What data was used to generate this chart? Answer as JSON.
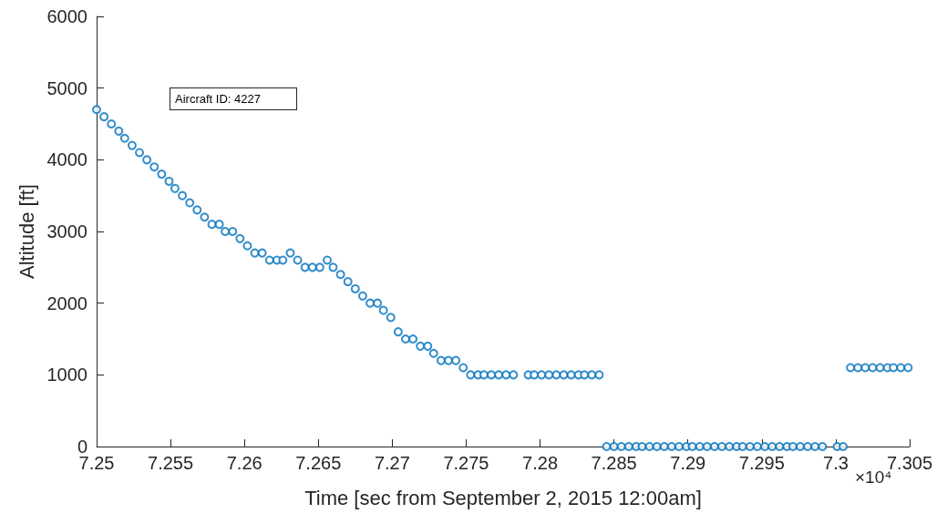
{
  "chart_data": {
    "type": "scatter",
    "xlabel": "Time [sec from September 2, 2015 12:00am]",
    "ylabel": "Altitude [ft]",
    "annotations": [
      "Aircraft ID: 4227",
      "×10⁴"
    ],
    "xlim": [
      7.25,
      7.305
    ],
    "xticks": [
      7.25,
      7.255,
      7.26,
      7.265,
      7.27,
      7.275,
      7.28,
      7.285,
      7.29,
      7.295,
      7.3,
      7.305
    ],
    "ylim": [
      0,
      6000
    ],
    "yticks": [
      0,
      1000,
      2000,
      3000,
      4000,
      5000,
      6000
    ],
    "grid": false,
    "marker": "circle",
    "series": [
      {
        "color": "#0072bd",
        "x": [
          7.25,
          7.2505,
          7.251,
          7.2515,
          7.2519,
          7.2524,
          7.2529,
          7.2534,
          7.2539,
          7.2544,
          7.2549,
          7.2553,
          7.2558,
          7.2563,
          7.2568,
          7.2573,
          7.2578,
          7.2583,
          7.2587,
          7.2592,
          7.2597,
          7.2602,
          7.2607,
          7.2612,
          7.2617,
          7.2622,
          7.2626,
          7.2631,
          7.2636,
          7.2641,
          7.2646,
          7.2651,
          7.2656,
          7.266,
          7.2665,
          7.267,
          7.2675,
          7.268,
          7.2685,
          7.269,
          7.2694,
          7.2699,
          7.2704,
          7.2709,
          7.2714,
          7.2719,
          7.2724,
          7.2728,
          7.2733,
          7.2738,
          7.2743,
          7.2748,
          7.2753,
          7.2758,
          7.2762,
          7.2767,
          7.2772,
          7.2777,
          7.2782,
          7.2792,
          7.2796,
          7.2801,
          7.2806,
          7.2811,
          7.2816,
          7.2821,
          7.2826,
          7.283,
          7.2835,
          7.284,
          7.2845,
          7.285,
          7.2855,
          7.286,
          7.2865,
          7.2869,
          7.2874,
          7.2879,
          7.2884,
          7.2889,
          7.2894,
          7.2899,
          7.2903,
          7.2908,
          7.2913,
          7.2918,
          7.2923,
          7.2928,
          7.2933,
          7.2937,
          7.2942,
          7.2947,
          7.2952,
          7.2957,
          7.2962,
          7.2967,
          7.2971,
          7.2976,
          7.2981,
          7.2986,
          7.2991,
          7.3001,
          7.3005,
          7.301,
          7.3015,
          7.302,
          7.3025,
          7.303,
          7.3035,
          7.3039,
          7.3044,
          7.3049
        ],
        "values": [
          4700,
          4600,
          4500,
          4400,
          4300,
          4200,
          4100,
          4000,
          3900,
          3800,
          3700,
          3600,
          3500,
          3400,
          3300,
          3200,
          3100,
          3100,
          3000,
          3000,
          2900,
          2800,
          2700,
          2700,
          2600,
          2600,
          2600,
          2700,
          2600,
          2500,
          2500,
          2500,
          2600,
          2500,
          2400,
          2300,
          2200,
          2100,
          2000,
          2000,
          1900,
          1800,
          1600,
          1500,
          1500,
          1400,
          1400,
          1300,
          1200,
          1200,
          1200,
          1100,
          1000,
          1000,
          1000,
          1000,
          1000,
          1000,
          1000,
          1000,
          1000,
          1000,
          1000,
          1000,
          1000,
          1000,
          1000,
          1000,
          1000,
          1000,
          0,
          0,
          0,
          0,
          0,
          0,
          0,
          0,
          0,
          0,
          0,
          0,
          0,
          0,
          0,
          0,
          0,
          0,
          0,
          0,
          0,
          0,
          0,
          0,
          0,
          0,
          0,
          0,
          0,
          0,
          0,
          0,
          0,
          1100,
          1100,
          1100,
          1100,
          1100,
          1100,
          1100,
          1100,
          1100
        ]
      }
    ]
  }
}
